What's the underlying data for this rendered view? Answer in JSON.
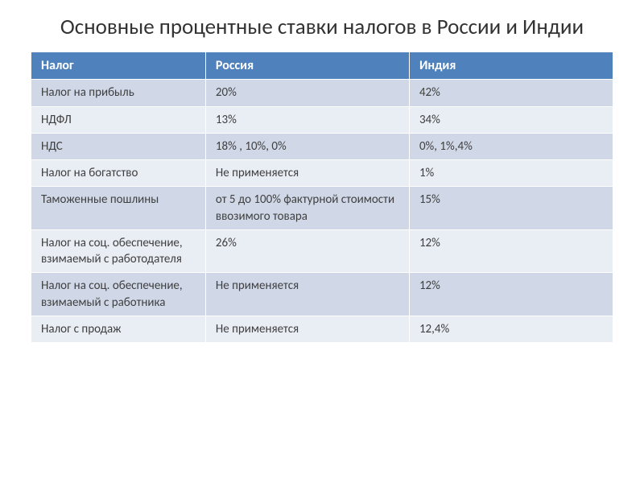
{
  "title": "Основные процентные ставки налогов в России и Индии",
  "table": {
    "headers": [
      "Налог",
      "Россия",
      "Индия"
    ],
    "header_bg": "#4f81bd",
    "header_fg": "#ffffff",
    "row_alt_colors": [
      "#d0d8e8",
      "#e9edf4"
    ],
    "text_color": "#404040",
    "border_color": "#ffffff",
    "column_widths": [
      "30%",
      "35%",
      "35%"
    ],
    "rows": [
      [
        "Налог на прибыль",
        "20%",
        "42%"
      ],
      [
        "НДФЛ",
        "13%",
        "34%"
      ],
      [
        "НДС",
        "18%  , 10%,  0%",
        "0%, 1%,4%"
      ],
      [
        "Налог на богатство",
        "Не применяется",
        "1%"
      ],
      [
        "Таможенные пошлины",
        "от 5 до 100% фактурной стоимости ввозимого товара",
        "15%"
      ],
      [
        "Налог на соц. обеспечение, взимаемый с работодателя",
        "26%",
        "12%"
      ],
      [
        "Налог на соц. обеспечение, взимаемый с работника",
        "Не применяется",
        "12%"
      ],
      [
        "Налог с продаж",
        "Не применяется",
        "12,4%"
      ]
    ]
  }
}
